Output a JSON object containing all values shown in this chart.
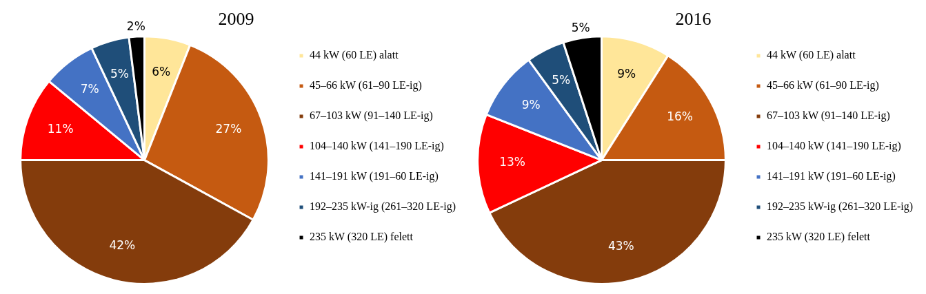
{
  "chart_data": [
    {
      "type": "pie",
      "title": "2009",
      "legend": "right",
      "categories": [
        "44 kW (60 LE) alatt",
        "45–66 kW (61–90 LE-ig)",
        "67–103 kW (91–140 LE-ig)",
        "104–140 kW (141–190 LE-ig)",
        "141–191 kW (191–60 LE-ig)",
        "192–235 kW-ig (261–320 LE-ig)",
        "235 kW (320 LE) felett"
      ],
      "values": [
        6,
        27,
        42,
        11,
        7,
        5,
        2
      ],
      "value_labels": [
        "6%",
        "27%",
        "42%",
        "11%",
        "7%",
        "5%",
        "2%"
      ],
      "colors": [
        "#ffe699",
        "#c55a11",
        "#843c0c",
        "#ff0000",
        "#4472c4",
        "#1f4e79",
        "#000000"
      ]
    },
    {
      "type": "pie",
      "title": "2016",
      "legend": "right",
      "categories": [
        "44 kW (60 LE) alatt",
        "45–66 kW (61–90 LE-ig)",
        "67–103 kW (91–140 LE-ig)",
        "104–140 kW (141–190 LE-ig)",
        "141–191 kW (191–60 LE-ig)",
        "192–235 kW-ig (261–320 LE-ig)",
        "235 kW (320 LE) felett"
      ],
      "values": [
        9,
        16,
        43,
        13,
        9,
        5,
        5
      ],
      "value_labels": [
        "9%",
        "16%",
        "43%",
        "13%",
        "9%",
        "5%",
        "5%"
      ],
      "colors": [
        "#ffe699",
        "#c55a11",
        "#843c0c",
        "#ff0000",
        "#4472c4",
        "#1f4e79",
        "#000000"
      ]
    }
  ]
}
